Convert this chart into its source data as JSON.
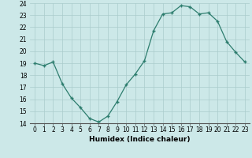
{
  "x": [
    0,
    1,
    2,
    3,
    4,
    5,
    6,
    7,
    8,
    9,
    10,
    11,
    12,
    13,
    14,
    15,
    16,
    17,
    18,
    19,
    20,
    21,
    22,
    23
  ],
  "y": [
    19.0,
    18.8,
    19.1,
    17.3,
    16.1,
    15.3,
    14.4,
    14.1,
    14.6,
    15.8,
    17.2,
    18.1,
    19.2,
    21.7,
    23.1,
    23.2,
    23.8,
    23.7,
    23.1,
    23.2,
    22.5,
    20.8,
    19.9,
    19.1
  ],
  "xlabel": "Humidex (Indice chaleur)",
  "ylim": [
    14,
    24
  ],
  "yticks": [
    14,
    15,
    16,
    17,
    18,
    19,
    20,
    21,
    22,
    23,
    24
  ],
  "xticks": [
    0,
    1,
    2,
    3,
    4,
    5,
    6,
    7,
    8,
    9,
    10,
    11,
    12,
    13,
    14,
    15,
    16,
    17,
    18,
    19,
    20,
    21,
    22,
    23
  ],
  "line_color": "#2d7d6e",
  "marker_color": "#2d7d6e",
  "bg_color": "#cce8e8",
  "grid_color": "#aacccc",
  "font_color": "#000000",
  "xlabel_fontsize": 6.5,
  "tick_fontsize": 5.5
}
